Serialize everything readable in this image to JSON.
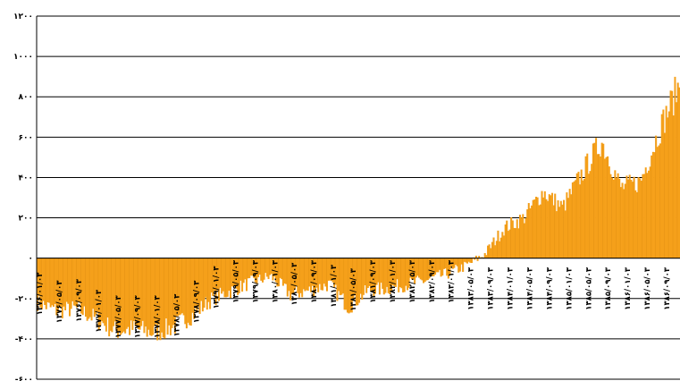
{
  "chart_data": {
    "type": "area",
    "title": "",
    "xlabel": "",
    "ylabel": "",
    "ylim": [
      -600,
      1200
    ],
    "y_ticks": [
      1200,
      1000,
      800,
      600,
      400,
      200,
      0,
      -200,
      -400,
      -600
    ],
    "y_tick_labels": [
      "۱۲۰۰",
      "۱۰۰۰",
      "۸۰۰",
      "۶۰۰",
      "۴۰۰",
      "۲۰۰",
      "۰",
      "-۲۰۰",
      "-۴۰۰",
      "-۶۰۰"
    ],
    "grid": true,
    "fill_color": "#F5A01A",
    "x": [
      "1997-01-03",
      "1997-05-03",
      "1997-09-03",
      "1998-01-03",
      "1998-05-03",
      "1998-09-03",
      "1999-01-03",
      "1999-05-03",
      "1999-09-03",
      "2000-01-03",
      "2000-05-03",
      "2000-09-03",
      "2001-01-03",
      "2001-05-03",
      "2001-09-03",
      "2002-01-03",
      "2002-05-03",
      "2002-09-03",
      "2003-01-03",
      "2003-05-03",
      "2003-09-03",
      "2004-01-03",
      "2004-05-03",
      "2004-09-03",
      "2005-01-03",
      "2005-05-03",
      "2005-09-03",
      "2006-01-03",
      "2006-05-03",
      "2006-09-03",
      "2007-01-03",
      "2007-05-03",
      "2007-09-03",
      "2007-12-31"
    ],
    "values": [
      -220,
      -260,
      -250,
      -300,
      -360,
      -350,
      -370,
      -340,
      -280,
      -200,
      -160,
      -120,
      -90,
      -180,
      -160,
      -130,
      -240,
      -160,
      -150,
      -130,
      -110,
      -80,
      -40,
      20,
      150,
      200,
      330,
      250,
      420,
      580,
      350,
      380,
      640,
      860
    ],
    "x_tick_labels": [
      "۱۳۷۶/۰۱/۰۳",
      "۱۳۷۶/۰۵/۰۳",
      "۱۳۷۶/۰۹/۰۳",
      "۱۳۷۷/۰۱/۰۳",
      "۱۳۷۷/۰۵/۰۳",
      "۱۳۷۷/۰۹/۰۳",
      "۱۳۷۸/۰۱/۰۳",
      "۱۳۷۸/۰۵/۰۳",
      "۱۳۷۸/۰۹/۰۳",
      "۱۳۷۹/۰۱/۰۳",
      "۱۳۷۹/۰۵/۰۳",
      "۱۳۷۹/۰۹/۰۳",
      "۱۳۸۰/۰۱/۰۳",
      "۱۳۸۰/۰۵/۰۳",
      "۱۳۸۰/۰۹/۰۳",
      "۱۳۸۱/۰۱/۰۳",
      "۱۳۸۱/۰۵/۰۳",
      "۱۳۸۱/۰۹/۰۳",
      "۱۳۸۲/۰۱/۰۳",
      "۱۳۸۲/۰۵/۰۳",
      "۱۳۸۲/۰۹/۰۳",
      "۱۳۸۳/۰۱/۰۳",
      "۱۳۸۳/۰۵/۰۳",
      "۱۳۸۳/۰۹/۰۳",
      "۱۳۸۴/۰۱/۰۳",
      "۱۳۸۴/۰۵/۰۳",
      "۱۳۸۴/۰۹/۰۳",
      "۱۳۸۵/۰۱/۰۳",
      "۱۳۸۵/۰۵/۰۳",
      "۱۳۸۵/۰۹/۰۳",
      "۱۳۸۶/۰۱/۰۳",
      "۱۳۸۶/۰۵/۰۳",
      "۱۳۸۶/۰۹/۰۳"
    ]
  }
}
